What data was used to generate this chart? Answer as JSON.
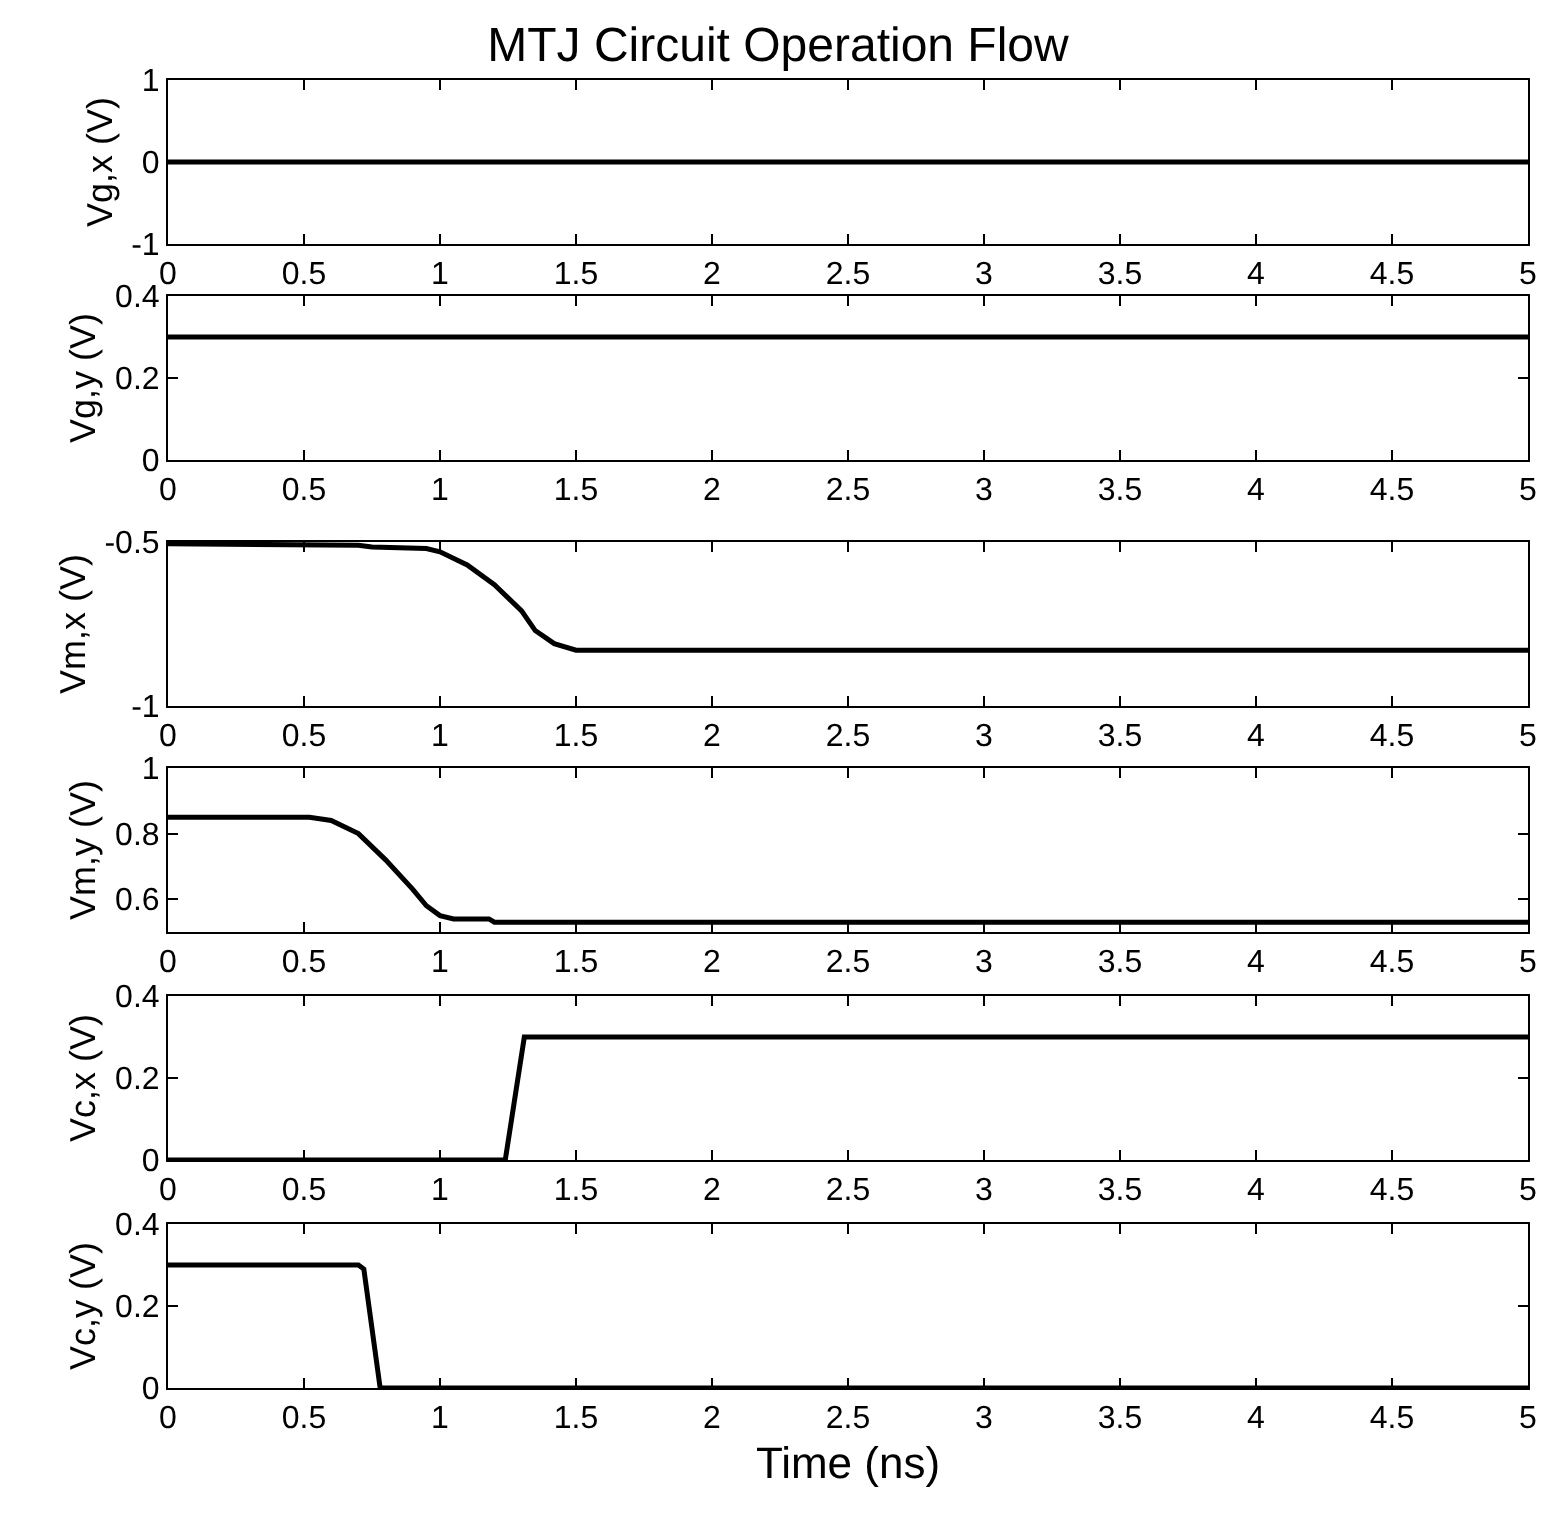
{
  "chart_data": [
    {
      "type": "line",
      "title": "MTJ Circuit Operation Flow",
      "ylabel": "Vg,x (V)",
      "x": [
        0,
        5
      ],
      "series": [
        {
          "color": "#000000",
          "values": [
            0,
            0
          ]
        }
      ],
      "xlim": [
        0,
        5
      ],
      "xticks": [
        0,
        0.5,
        1,
        1.5,
        2,
        2.5,
        3,
        3.5,
        4,
        4.5,
        5
      ],
      "ylim": [
        -1,
        1
      ],
      "yticks": [
        -1,
        0,
        1
      ]
    },
    {
      "type": "line",
      "ylabel": "Vg,y (V)",
      "x": [
        0,
        5
      ],
      "series": [
        {
          "color": "#000000",
          "values": [
            0.3,
            0.3
          ]
        }
      ],
      "xlim": [
        0,
        5
      ],
      "xticks": [
        0,
        0.5,
        1,
        1.5,
        2,
        2.5,
        3,
        3.5,
        4,
        4.5,
        5
      ],
      "ylim": [
        0,
        0.4
      ],
      "yticks": [
        0,
        0.2,
        0.4
      ]
    },
    {
      "type": "line",
      "ylabel": "Vm,x (V)",
      "x": [
        0,
        0.7,
        0.75,
        0.95,
        1.0,
        1.1,
        1.2,
        1.3,
        1.35,
        1.42,
        1.5,
        5
      ],
      "series": [
        {
          "color": "#000000",
          "values": [
            -0.505,
            -0.51,
            -0.515,
            -0.52,
            -0.53,
            -0.57,
            -0.63,
            -0.71,
            -0.77,
            -0.81,
            -0.83,
            -0.83
          ]
        }
      ],
      "xlim": [
        0,
        5
      ],
      "xticks": [
        0,
        0.5,
        1,
        1.5,
        2,
        2.5,
        3,
        3.5,
        4,
        4.5,
        5
      ],
      "ylim": [
        -1,
        -0.5
      ],
      "yticks": [
        -1,
        -0.5
      ]
    },
    {
      "type": "line",
      "ylabel": "Vm,y (V)",
      "x": [
        0,
        0.52,
        0.6,
        0.7,
        0.8,
        0.9,
        0.95,
        1.0,
        1.05,
        1.18,
        1.2,
        5
      ],
      "series": [
        {
          "color": "#000000",
          "values": [
            0.85,
            0.85,
            0.84,
            0.8,
            0.72,
            0.63,
            0.58,
            0.55,
            0.54,
            0.54,
            0.53,
            0.53
          ]
        }
      ],
      "xlim": [
        0,
        5
      ],
      "xticks": [
        0,
        0.5,
        1,
        1.5,
        2,
        2.5,
        3,
        3.5,
        4,
        4.5,
        5
      ],
      "ylim": [
        0.5,
        1
      ],
      "yticks": [
        0.6,
        0.8,
        1
      ]
    },
    {
      "type": "line",
      "ylabel": "Vc,x (V)",
      "x": [
        0,
        1.24,
        1.31,
        5
      ],
      "series": [
        {
          "color": "#000000",
          "values": [
            0,
            0,
            0.3,
            0.3
          ]
        }
      ],
      "xlim": [
        0,
        5
      ],
      "xticks": [
        0,
        0.5,
        1,
        1.5,
        2,
        2.5,
        3,
        3.5,
        4,
        4.5,
        5
      ],
      "ylim": [
        0,
        0.4
      ],
      "yticks": [
        0,
        0.2,
        0.4
      ]
    },
    {
      "type": "line",
      "ylabel": "Vc,y (V)",
      "xlabel": "Time (ns)",
      "x": [
        0,
        0.7,
        0.72,
        0.78,
        5
      ],
      "series": [
        {
          "color": "#000000",
          "values": [
            0.3,
            0.3,
            0.29,
            0,
            0
          ]
        }
      ],
      "xlim": [
        0,
        5
      ],
      "xticks": [
        0,
        0.5,
        1,
        1.5,
        2,
        2.5,
        3,
        3.5,
        4,
        4.5,
        5
      ],
      "ylim": [
        0,
        0.4
      ],
      "yticks": [
        0,
        0.2,
        0.4
      ]
    }
  ]
}
